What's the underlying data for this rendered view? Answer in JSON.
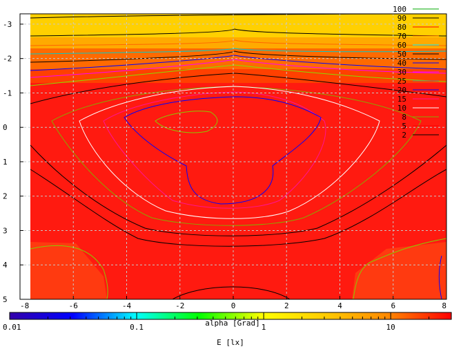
{
  "chart_data": {
    "type": "heatmap",
    "title": "",
    "xlabel": "alpha [Grad]",
    "ylabel": "",
    "xlim": [
      -8,
      8
    ],
    "ylim": [
      -3.3,
      5
    ],
    "y_inverted": true,
    "x_ticks": [
      -8,
      -6,
      -4,
      -2,
      0,
      2,
      4,
      6,
      8
    ],
    "x_tick_labels": [
      "-8",
      "-6",
      "-4",
      "-2",
      "0",
      "2",
      "4",
      "6",
      "8"
    ],
    "y_ticks": [
      -3,
      -2,
      -1,
      0,
      1,
      2,
      3,
      4,
      5
    ],
    "y_tick_labels": [
      "-3",
      "-2",
      "-1",
      "0",
      "1",
      "2",
      "3",
      "4",
      "5"
    ],
    "grid": true,
    "data_extent": {
      "x": [
        -7.5,
        8
      ],
      "y": [
        -3.0,
        5
      ]
    },
    "contour_levels": [
      100,
      90,
      80,
      70,
      60,
      50,
      40,
      30,
      25,
      20,
      15,
      10,
      8,
      5,
      2
    ],
    "contour_colors": [
      "#00aa00",
      "#000000",
      "#ff0000",
      "#ff6600",
      "#00ffff",
      "#000000",
      "#0000ff",
      "#ff00ff",
      "#777777",
      "#0000ff",
      "#ff1493",
      "#ffffff",
      "#88aa00",
      "#ff0000",
      "#000000"
    ],
    "legend": {
      "position": "top-right",
      "entries": [
        {
          "label": "100",
          "color": "#00aa00"
        },
        {
          "label": "90",
          "color": "#000000"
        },
        {
          "label": "80",
          "color": "#ff0000"
        },
        {
          "label": "70",
          "color": "#ff6600"
        },
        {
          "label": "60",
          "color": "#00ffff"
        },
        {
          "label": "50",
          "color": "#000000"
        },
        {
          "label": "40",
          "color": "#0000ff"
        },
        {
          "label": "30",
          "color": "#ff00ff"
        },
        {
          "label": "25",
          "color": "#777777"
        },
        {
          "label": "20",
          "color": "#0000ff"
        },
        {
          "label": "15",
          "color": "#ff1493"
        },
        {
          "label": "10",
          "color": "#ffffff"
        },
        {
          "label": "8",
          "color": "#88aa00"
        },
        {
          "label": "5",
          "color": "#ff0000"
        },
        {
          "label": "2",
          "color": "#000000"
        }
      ]
    },
    "colorbar": {
      "label": "E [lx]",
      "scale": "log",
      "range": [
        0.01,
        30
      ],
      "tick_labels": [
        "0.01",
        "0.1",
        "1",
        "10"
      ],
      "tick_values": [
        0.01,
        0.1,
        1,
        10
      ],
      "colors": [
        "#3300aa",
        "#0000ff",
        "#00ffff",
        "#00ff00",
        "#ffff00",
        "#ffcc00",
        "#ff8800",
        "#ff0000"
      ]
    }
  }
}
